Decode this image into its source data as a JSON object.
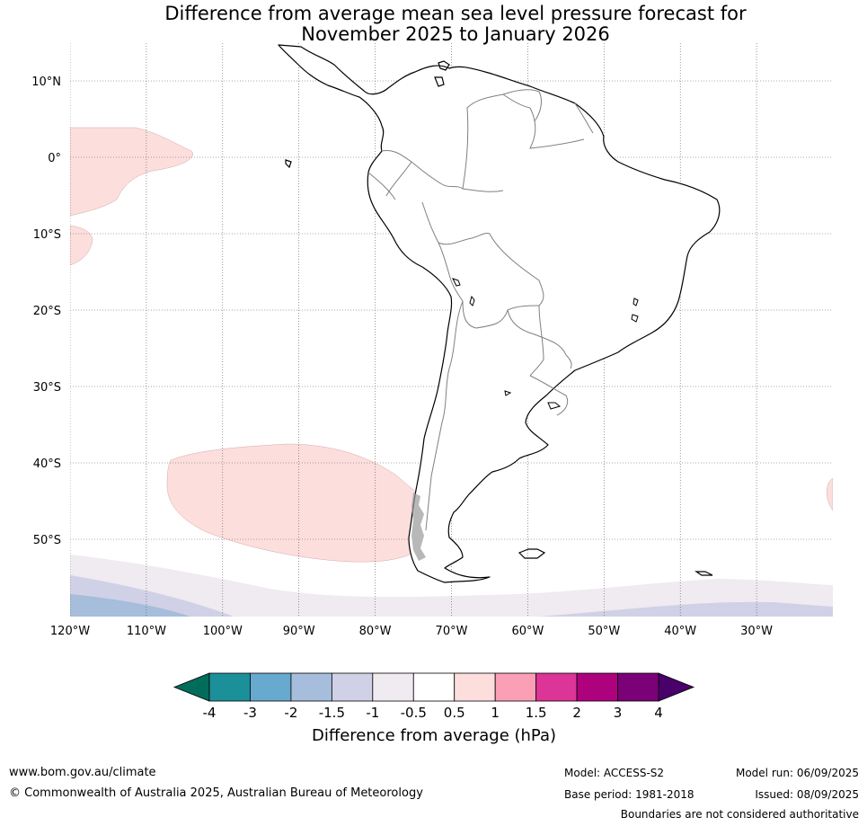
{
  "title": {
    "line1": "Difference from average mean sea level pressure forecast for",
    "line2": "November 2025 to January 2026"
  },
  "map": {
    "projection": "equirectangular",
    "lon_range": [
      -120,
      -20
    ],
    "lat_range": [
      -60,
      15
    ],
    "lat_labels": [
      {
        "lat": 10,
        "label": "10°N"
      },
      {
        "lat": 0,
        "label": "0°"
      },
      {
        "lat": -10,
        "label": "10°S"
      },
      {
        "lat": -20,
        "label": "20°S"
      },
      {
        "lat": -30,
        "label": "30°S"
      },
      {
        "lat": -40,
        "label": "40°S"
      },
      {
        "lat": -50,
        "label": "50°S"
      }
    ],
    "lon_labels": [
      {
        "lon": -120,
        "label": "120°W"
      },
      {
        "lon": -110,
        "label": "110°W"
      },
      {
        "lon": -100,
        "label": "100°W"
      },
      {
        "lon": -90,
        "label": "90°W"
      },
      {
        "lon": -80,
        "label": "80°W"
      },
      {
        "lon": -70,
        "label": "70°W"
      },
      {
        "lon": -60,
        "label": "60°W"
      },
      {
        "lon": -50,
        "label": "50°W"
      },
      {
        "lon": -40,
        "label": "40°W"
      },
      {
        "lon": -30,
        "label": "30°W"
      }
    ],
    "gridlines": true,
    "regions": [
      {
        "category": "0.5 to 1",
        "color": "#fcdedd",
        "area": "eastern tropical Pacific off Ecuador and Peru, about 4°N to 14°S, 120°W to 104°W"
      },
      {
        "category": "0.5 to 1",
        "color": "#fcdedd",
        "area": "south-east Pacific west of southern Chile, about 38°S to 53°S, 103°W to 71°W"
      },
      {
        "category": "0.5 to 1",
        "color": "#fcdedd",
        "area": "South Atlantic near 22°W, about 42°S to 46°S"
      },
      {
        "category": "-1 to -0.5",
        "color": "#f0eaf1",
        "area": "Southern Ocean band south of about 52°S to 55°S"
      },
      {
        "category": "-1.5 to -1",
        "color": "#d0d1e6",
        "area": "Southern Ocean south of about 55°S to 58°S"
      },
      {
        "category": "-2 to -1.5",
        "color": "#a6bddb",
        "area": "Southern Ocean south-west corner south of about 57°S, 120°W to 100°W"
      }
    ],
    "land": "South America coastline and country boundaries"
  },
  "colorbar": {
    "title": "Difference from average (hPa)",
    "labels": [
      "-4",
      "-3",
      "-2",
      "-1.5",
      "-1",
      "-0.5",
      "0.5",
      "1",
      "1.5",
      "2",
      "3",
      "4"
    ],
    "under_color": "#016c59",
    "over_color": "#49006a",
    "colors": [
      "#1c9099",
      "#67a9cf",
      "#a6bddb",
      "#d0d1e6",
      "#f0eaf1",
      "#ffffff",
      "#fcdedd",
      "#fa9fb5",
      "#dd3497",
      "#ae017e",
      "#7a0177"
    ]
  },
  "footer": {
    "website": "www.bom.gov.au/climate",
    "copyright": "© Commonwealth of Australia 2025, Australian Bureau of Meteorology",
    "model": "Model: ACCESS-S2",
    "base_period": "Base period: 1981-2018",
    "model_run": "Model run: 06/09/2025",
    "issued": "Issued: 08/09/2025",
    "disclaimer": "Boundaries are not considered authoritative"
  }
}
